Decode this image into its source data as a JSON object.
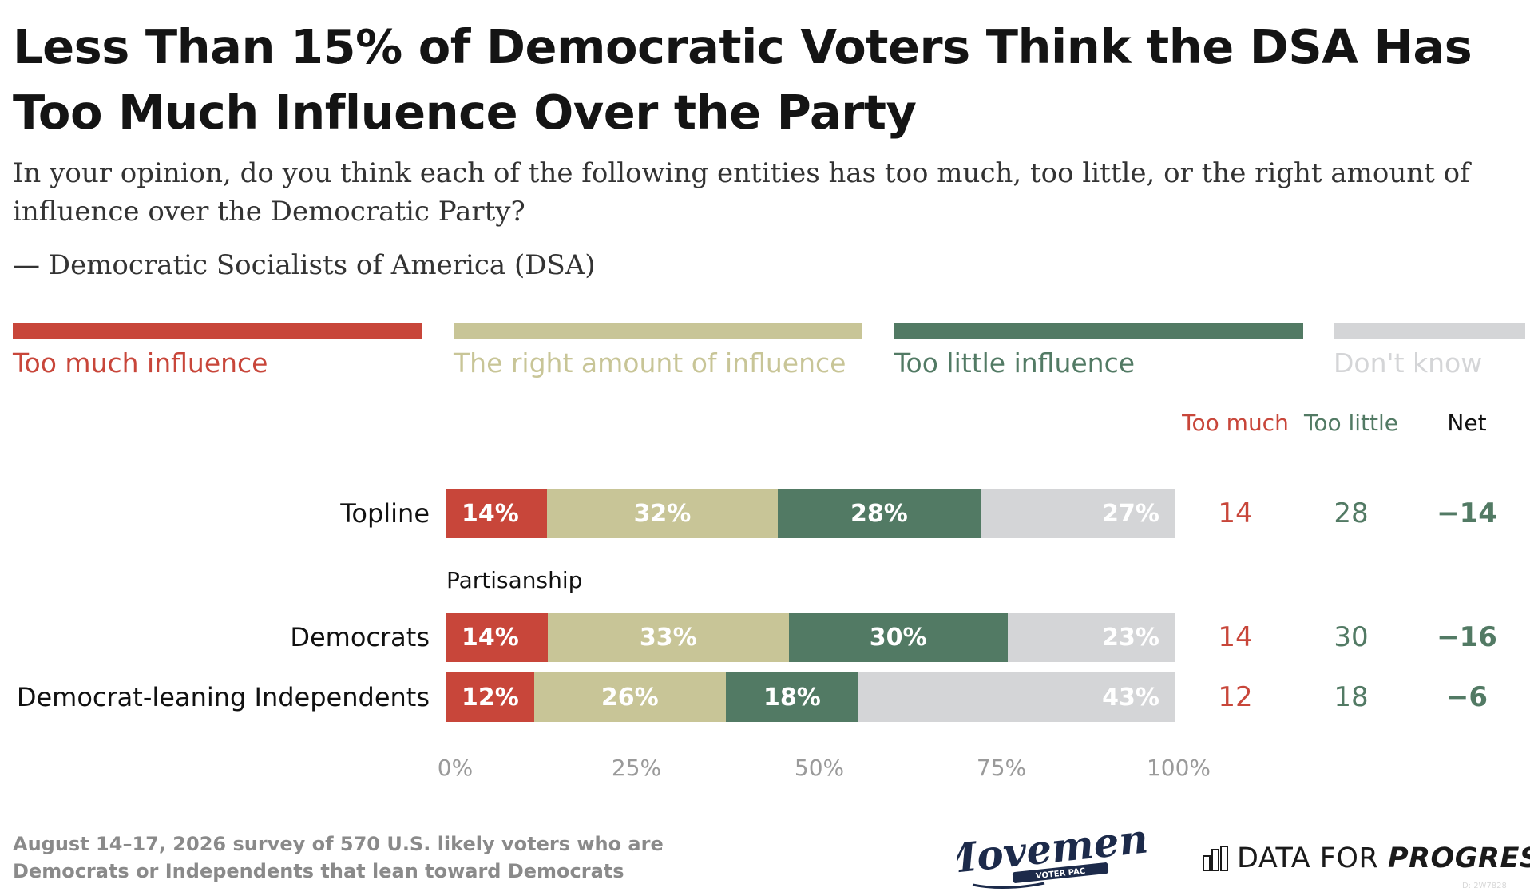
{
  "title": "Less Than 15% of Democratic Voters Think the DSA Has Too Much Influence Over the Party",
  "subtitle": "In your opinion, do you think each of the following entities has too much, too little, or the right amount of influence over the Democratic Party?",
  "item_label": "— Democratic Socialists of America (DSA)",
  "colors": {
    "too_much": "#c8463a",
    "right_amount": "#c8c597",
    "too_little": "#527a64",
    "dont_know": "#d4d5d7"
  },
  "legend": [
    {
      "label": "Too much influence",
      "color": "#c8463a"
    },
    {
      "label": "The right amount of influence",
      "color": "#c8c597"
    },
    {
      "label": "Too little influence",
      "color": "#527a64"
    },
    {
      "label": "Don't know",
      "color": "#d4d5d7"
    }
  ],
  "columns": {
    "too_much": "Too much",
    "too_little": "Too little",
    "net": "Net"
  },
  "group_label": "Partisanship",
  "chart_data": {
    "type": "bar",
    "orientation": "horizontal",
    "stacked": true,
    "title": "Less Than 15% of Democratic Voters Think the DSA Has Too Much Influence Over the Party",
    "xlim": [
      0,
      100
    ],
    "x_ticks": [
      "0%",
      "25%",
      "50%",
      "75%",
      "100%"
    ],
    "grid": false,
    "legend_position": "top",
    "categories": [
      "Topline",
      "Democrats",
      "Democrat-leaning Independents"
    ],
    "series": [
      {
        "name": "Too much influence",
        "values": [
          14,
          14,
          12
        ]
      },
      {
        "name": "The right amount of influence",
        "values": [
          32,
          33,
          26
        ]
      },
      {
        "name": "Too little influence",
        "values": [
          28,
          30,
          18
        ]
      },
      {
        "name": "Don't know",
        "values": [
          27,
          23,
          43
        ]
      }
    ],
    "table": [
      {
        "too_much": "14",
        "too_little": "28",
        "net": "−14"
      },
      {
        "too_much": "14",
        "too_little": "30",
        "net": "−16"
      },
      {
        "too_much": "12",
        "too_little": "18",
        "net": "−6"
      }
    ]
  },
  "footer_note": "August 14–17, 2026 survey of 570 U.S. likely voters who are Democrats or Independents that lean toward Democrats",
  "logos": {
    "movement": "Movement",
    "movement_sub": "VOTER PAC",
    "dfp_light": "DATA FOR",
    "dfp_bold": "PROGRESS",
    "ref_id": "ID: 2W7828"
  }
}
